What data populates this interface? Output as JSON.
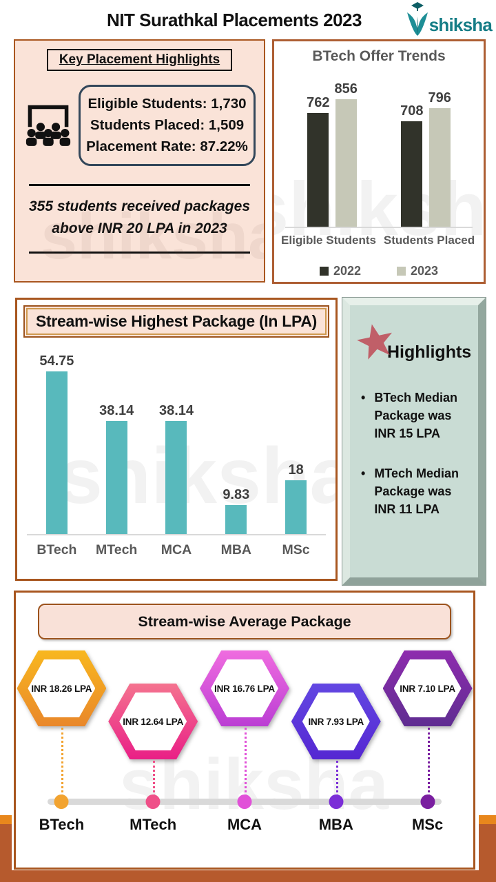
{
  "header": {
    "title": "NIT Surathkal Placements 2023",
    "logo_text": "shiksha"
  },
  "watermark": "shiksha",
  "key_highlights": {
    "title": "Key Placement Highlights",
    "stat_lines": [
      "Eligible Students: 1,730",
      "Students Placed: 1,509",
      "Placement Rate: 87.22%"
    ],
    "note": "355 students received packages above INR 20 LPA in 2023"
  },
  "highlights_panel": {
    "title": "Highlights",
    "bullet_glyph": "•",
    "bullets": [
      "BTech Median Package was INR 15 LPA",
      "MTech Median Package was INR 11 LPA"
    ]
  },
  "chart_data": [
    {
      "type": "bar",
      "title": "BTech Offer Trends",
      "categories": [
        "Eligible Students",
        "Students Placed"
      ],
      "series": [
        {
          "name": "2022",
          "values": [
            762,
            708
          ],
          "color": "#31332a"
        },
        {
          "name": "2023",
          "values": [
            856,
            796
          ],
          "color": "#c6c8b7"
        }
      ],
      "ylim": [
        0,
        856
      ],
      "grid": false,
      "legend_position": "bottom"
    },
    {
      "type": "bar",
      "title": "Stream-wise Highest Package (In LPA)",
      "categories": [
        "BTech",
        "MTech",
        "MCA",
        "MBA",
        "MSc"
      ],
      "values": [
        54.75,
        38.14,
        38.14,
        9.83,
        18
      ],
      "bar_color": "#58b9bc",
      "ylim": [
        0,
        55
      ],
      "grid": false
    },
    {
      "type": "table",
      "title": "Stream-wise Average Package",
      "categories": [
        "BTech",
        "MTech",
        "MCA",
        "MBA",
        "MSc"
      ],
      "values": [
        18.26,
        12.64,
        16.76,
        7.93,
        7.1
      ],
      "labels": [
        "INR 18.26  LPA",
        "INR 12.64  LPA",
        "INR 16.76  LPA",
        "INR 7.93  LPA",
        "INR 7.10  LPA"
      ],
      "colors": [
        {
          "top": "#f8b71f",
          "bottom": "#e9872a",
          "dot": "#f2a330"
        },
        {
          "top": "#f4738f",
          "bottom": "#e91f86",
          "dot": "#ef4f88"
        },
        {
          "top": "#ef6cdf",
          "bottom": "#bb3ed4",
          "dot": "#e151d8"
        },
        {
          "top": "#6247e2",
          "bottom": "#5527d2",
          "dot": "#7b2ed7"
        },
        {
          "top": "#8e2cae",
          "bottom": "#5f2d91",
          "dot": "#7a1fa0"
        }
      ]
    }
  ]
}
